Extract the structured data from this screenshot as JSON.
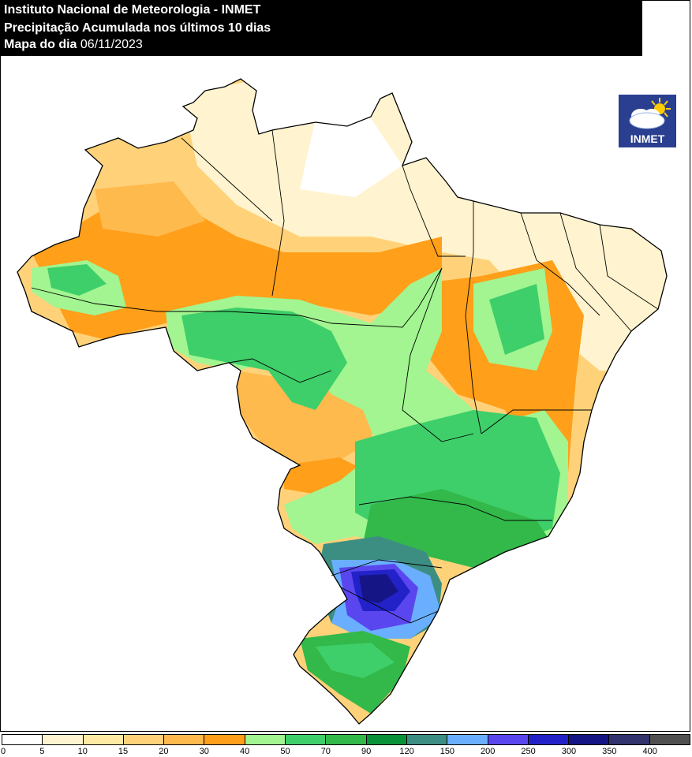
{
  "header": {
    "line1": "Instituto Nacional de Meteorologia - INMET",
    "line2": "Precipitação Acumulada nos últimos 10 dias",
    "line3_label": "Mapa do dia",
    "line3_date": "06/11/2023"
  },
  "logo": {
    "text": "INMET",
    "icon": "cloud-sun-icon"
  },
  "legend": {
    "ticks": [
      "0",
      "5",
      "10",
      "15",
      "20",
      "30",
      "40",
      "50",
      "70",
      "90",
      "120",
      "150",
      "200",
      "250",
      "300",
      "350",
      "400"
    ],
    "colors": [
      "#ffffff",
      "#fff4cf",
      "#ffeaa4",
      "#ffd27a",
      "#ffba4e",
      "#ff9f1a",
      "#a2f590",
      "#3fcf6a",
      "#32b94a",
      "#0a9238",
      "#3c8e83",
      "#6aafff",
      "#5a46ee",
      "#2222c8",
      "#151586",
      "#33336d",
      "#505050"
    ]
  }
}
